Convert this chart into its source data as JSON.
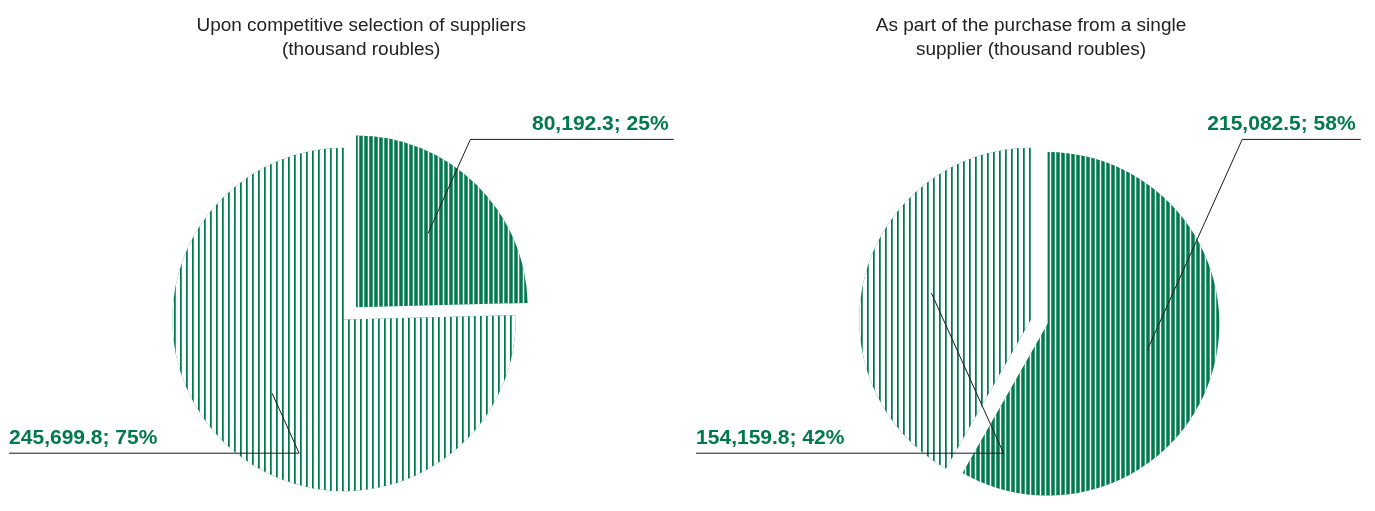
{
  "chart_data": [
    {
      "type": "pie",
      "title": "Upon competitive selection of suppliers (thousand roubles)",
      "categories": [
        null,
        null
      ],
      "values": [
        80192.3,
        245699.8
      ],
      "value_labels": [
        "80,192.3; 25%",
        "245,699.8; 75%"
      ],
      "colors": [
        "#007a4d",
        "#007a4d"
      ]
    },
    {
      "type": "pie",
      "title": "As part of the purchase from a single supplier (thousand roubles)",
      "categories": [
        null,
        null
      ],
      "values": [
        215082.5,
        154159.8
      ],
      "value_labels": [
        "215,082.5; 58%",
        "154,159.8; 42%"
      ],
      "colors": [
        "#007a4d",
        "#007a4d"
      ]
    }
  ]
}
